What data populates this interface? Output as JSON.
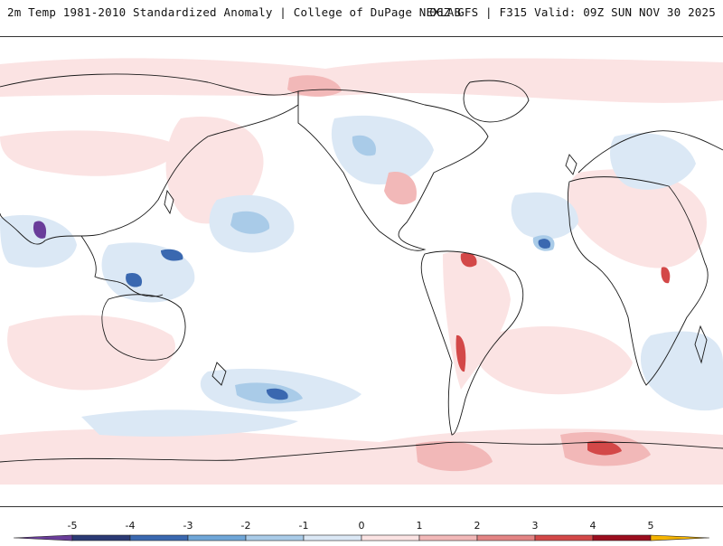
{
  "header": {
    "title_left": "2m Temp 1981-2010 Standardized Anomaly | College of DuPage NEXLAB",
    "title_right": "06Z GFS | F315 Valid: 09Z SUN NOV 30 2025"
  },
  "colorbar": {
    "tick_labels": [
      "-5",
      "-4",
      "-3",
      "-2",
      "-1",
      "0",
      "1",
      "2",
      "3",
      "4",
      "5"
    ],
    "colors": {
      "below": "#6a3d9a",
      "bins": [
        "#2b3a75",
        "#3a68b0",
        "#6fa6d8",
        "#a9cbe8",
        "#dbe8f5",
        "#fbe3e3",
        "#f2b8b8",
        "#e38484",
        "#d34848",
        "#9b0d1e"
      ],
      "above": "#f5b400"
    }
  },
  "map_colors": {
    "ocean": "#ffffff",
    "coast": "#1a1a1a",
    "light_warm": "#fbe3e3",
    "warm": "#f2b8b8",
    "hot": "#d34848",
    "light_cool": "#dbe8f5",
    "cool": "#a9cbe8",
    "cold": "#3a68b0",
    "very_cold": "#2b3a75",
    "extreme_cold": "#6a3d9a"
  }
}
